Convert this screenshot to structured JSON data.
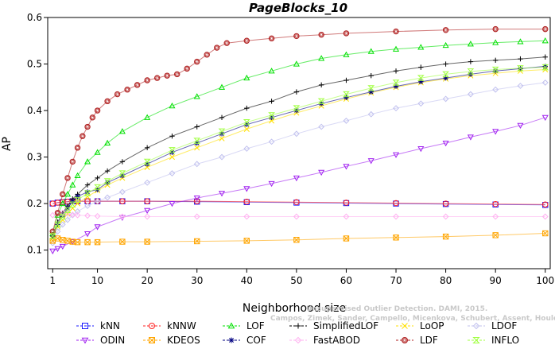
{
  "chart_data": {
    "type": "line",
    "title": "PageBlocks_10",
    "xlabel": "Neighborhood size",
    "ylabel": "AP",
    "xlim": [
      0,
      101
    ],
    "ylim": [
      0.06,
      0.6
    ],
    "xticks": [
      1,
      10,
      20,
      30,
      40,
      50,
      60,
      70,
      80,
      90,
      100
    ],
    "yticks": [
      0.1,
      0.2,
      0.3,
      0.4,
      0.5,
      0.6
    ],
    "grid": false,
    "legend_position": "bottom",
    "series": [
      {
        "name": "kNN",
        "color": "#1a1aff",
        "marker": "square",
        "x": [
          1,
          2,
          3,
          4,
          5,
          6,
          8,
          10,
          15,
          20,
          30,
          40,
          50,
          60,
          70,
          80,
          90,
          100
        ],
        "y": [
          0.2,
          0.202,
          0.203,
          0.204,
          0.205,
          0.205,
          0.205,
          0.205,
          0.205,
          0.205,
          0.204,
          0.203,
          0.202,
          0.201,
          0.2,
          0.199,
          0.198,
          0.197
        ]
      },
      {
        "name": "kNNW",
        "color": "#ff2020",
        "marker": "circle",
        "x": [
          1,
          2,
          3,
          4,
          5,
          6,
          8,
          10,
          15,
          20,
          30,
          40,
          50,
          60,
          70,
          80,
          90,
          100
        ],
        "y": [
          0.2,
          0.202,
          0.203,
          0.204,
          0.205,
          0.205,
          0.205,
          0.205,
          0.205,
          0.205,
          0.205,
          0.204,
          0.203,
          0.202,
          0.201,
          0.2,
          0.199,
          0.198
        ]
      },
      {
        "name": "LOF",
        "color": "#00e000",
        "marker": "triangle-up",
        "x": [
          1,
          2,
          3,
          4,
          5,
          6,
          8,
          10,
          12,
          15,
          20,
          25,
          30,
          35,
          40,
          45,
          50,
          55,
          60,
          65,
          70,
          75,
          80,
          85,
          90,
          95,
          100
        ],
        "y": [
          0.135,
          0.175,
          0.2,
          0.22,
          0.24,
          0.26,
          0.29,
          0.31,
          0.33,
          0.355,
          0.385,
          0.41,
          0.43,
          0.45,
          0.47,
          0.485,
          0.5,
          0.512,
          0.52,
          0.527,
          0.532,
          0.536,
          0.54,
          0.543,
          0.546,
          0.548,
          0.55
        ]
      },
      {
        "name": "SimplifiedLOF",
        "color": "#000000",
        "marker": "plus",
        "x": [
          1,
          2,
          3,
          4,
          5,
          6,
          8,
          10,
          12,
          15,
          20,
          25,
          30,
          35,
          40,
          45,
          50,
          55,
          60,
          65,
          70,
          75,
          80,
          85,
          90,
          95,
          100
        ],
        "y": [
          0.13,
          0.16,
          0.18,
          0.195,
          0.21,
          0.22,
          0.24,
          0.255,
          0.27,
          0.29,
          0.32,
          0.345,
          0.365,
          0.385,
          0.405,
          0.42,
          0.44,
          0.455,
          0.465,
          0.475,
          0.485,
          0.493,
          0.5,
          0.505,
          0.508,
          0.511,
          0.515
        ]
      },
      {
        "name": "LoOP",
        "color": "#ffe000",
        "marker": "x",
        "x": [
          1,
          2,
          3,
          4,
          5,
          6,
          8,
          10,
          12,
          15,
          20,
          25,
          30,
          35,
          40,
          45,
          50,
          55,
          60,
          65,
          70,
          75,
          80,
          85,
          90,
          95,
          100
        ],
        "y": [
          0.125,
          0.15,
          0.165,
          0.178,
          0.19,
          0.2,
          0.215,
          0.228,
          0.24,
          0.255,
          0.278,
          0.3,
          0.32,
          0.34,
          0.36,
          0.378,
          0.395,
          0.41,
          0.425,
          0.438,
          0.45,
          0.46,
          0.468,
          0.475,
          0.48,
          0.485,
          0.488
        ]
      },
      {
        "name": "LDOF",
        "color": "#c0c0ee",
        "marker": "diamond",
        "x": [
          1,
          2,
          3,
          4,
          5,
          6,
          8,
          10,
          12,
          15,
          20,
          25,
          30,
          35,
          40,
          45,
          50,
          55,
          60,
          65,
          70,
          75,
          80,
          85,
          90,
          95,
          100
        ],
        "y": [
          0.115,
          0.14,
          0.155,
          0.165,
          0.175,
          0.183,
          0.195,
          0.205,
          0.213,
          0.225,
          0.245,
          0.265,
          0.285,
          0.3,
          0.318,
          0.333,
          0.35,
          0.365,
          0.378,
          0.392,
          0.405,
          0.415,
          0.425,
          0.435,
          0.445,
          0.453,
          0.46
        ]
      },
      {
        "name": "ODIN",
        "color": "#a020f0",
        "marker": "triangle-down",
        "x": [
          1,
          2,
          3,
          5,
          8,
          10,
          15,
          20,
          25,
          30,
          35,
          40,
          45,
          50,
          55,
          60,
          65,
          70,
          75,
          80,
          85,
          90,
          95,
          100
        ],
        "y": [
          0.098,
          0.103,
          0.108,
          0.118,
          0.135,
          0.15,
          0.17,
          0.185,
          0.2,
          0.212,
          0.222,
          0.232,
          0.243,
          0.255,
          0.267,
          0.28,
          0.292,
          0.305,
          0.318,
          0.33,
          0.343,
          0.355,
          0.368,
          0.385
        ]
      },
      {
        "name": "KDEOS",
        "color": "#ffa500",
        "marker": "square-x",
        "x": [
          1,
          2,
          3,
          4,
          5,
          6,
          8,
          10,
          15,
          20,
          30,
          40,
          50,
          60,
          70,
          80,
          90,
          100
        ],
        "y": [
          0.12,
          0.125,
          0.122,
          0.12,
          0.118,
          0.117,
          0.117,
          0.117,
          0.118,
          0.118,
          0.119,
          0.12,
          0.122,
          0.125,
          0.127,
          0.129,
          0.132,
          0.136
        ]
      },
      {
        "name": "COF",
        "color": "#000080",
        "marker": "asterisk",
        "x": [
          1,
          2,
          3,
          4,
          5,
          6,
          8,
          10,
          12,
          15,
          20,
          25,
          30,
          35,
          40,
          45,
          50,
          55,
          60,
          65,
          70,
          75,
          80,
          85,
          90,
          95,
          100
        ],
        "y": [
          0.13,
          0.155,
          0.175,
          0.19,
          0.205,
          0.215,
          0.225,
          0.23,
          0.245,
          0.26,
          0.285,
          0.31,
          0.33,
          0.35,
          0.37,
          0.385,
          0.4,
          0.415,
          0.428,
          0.44,
          0.452,
          0.462,
          0.47,
          0.478,
          0.485,
          0.49,
          0.495
        ]
      },
      {
        "name": "FastABOD",
        "color": "#ffb0f0",
        "marker": "diamond",
        "x": [
          1,
          2,
          3,
          4,
          5,
          6,
          8,
          10,
          15,
          20,
          30,
          40,
          50,
          60,
          70,
          80,
          90,
          100
        ],
        "y": [
          0.175,
          0.18,
          0.18,
          0.178,
          0.176,
          0.175,
          0.174,
          0.173,
          0.172,
          0.172,
          0.172,
          0.172,
          0.172,
          0.172,
          0.172,
          0.172,
          0.172,
          0.172
        ]
      },
      {
        "name": "LDF",
        "color": "#b02020",
        "marker": "circle-dot",
        "x": [
          1,
          2,
          3,
          4,
          5,
          6,
          7,
          8,
          9,
          10,
          12,
          14,
          16,
          18,
          20,
          22,
          24,
          26,
          28,
          30,
          32,
          34,
          36,
          40,
          45,
          50,
          55,
          60,
          70,
          80,
          90,
          100
        ],
        "y": [
          0.14,
          0.18,
          0.22,
          0.255,
          0.29,
          0.32,
          0.345,
          0.365,
          0.385,
          0.4,
          0.42,
          0.435,
          0.445,
          0.455,
          0.465,
          0.47,
          0.475,
          0.478,
          0.49,
          0.505,
          0.52,
          0.535,
          0.545,
          0.55,
          0.555,
          0.56,
          0.563,
          0.566,
          0.57,
          0.573,
          0.575,
          0.575
        ]
      },
      {
        "name": "INFLO",
        "color": "#a0ff40",
        "marker": "hourglass",
        "x": [
          1,
          2,
          3,
          4,
          5,
          6,
          8,
          10,
          12,
          15,
          20,
          25,
          30,
          35,
          40,
          45,
          50,
          55,
          60,
          65,
          70,
          75,
          80,
          85,
          90,
          95,
          100
        ],
        "y": [
          0.13,
          0.155,
          0.172,
          0.186,
          0.198,
          0.208,
          0.222,
          0.235,
          0.248,
          0.265,
          0.29,
          0.315,
          0.335,
          0.355,
          0.375,
          0.39,
          0.405,
          0.42,
          0.435,
          0.448,
          0.46,
          0.47,
          0.478,
          0.484,
          0.488,
          0.491,
          0.493
        ]
      }
    ],
    "legend_rows": [
      [
        "kNN",
        "kNNW",
        "LOF",
        "SimplifiedLOF",
        "LoOP",
        "LDOF"
      ],
      [
        "ODIN",
        "KDEOS",
        "COF",
        "FastABOD",
        "LDF",
        "INFLO"
      ]
    ],
    "watermark_lines": [
      "Unsupervised Outlier Detection. DAMI, 2015.",
      "Campos, Zimek, Sander, Campello, Micenkova, Schubert, Assent, Houle"
    ]
  }
}
